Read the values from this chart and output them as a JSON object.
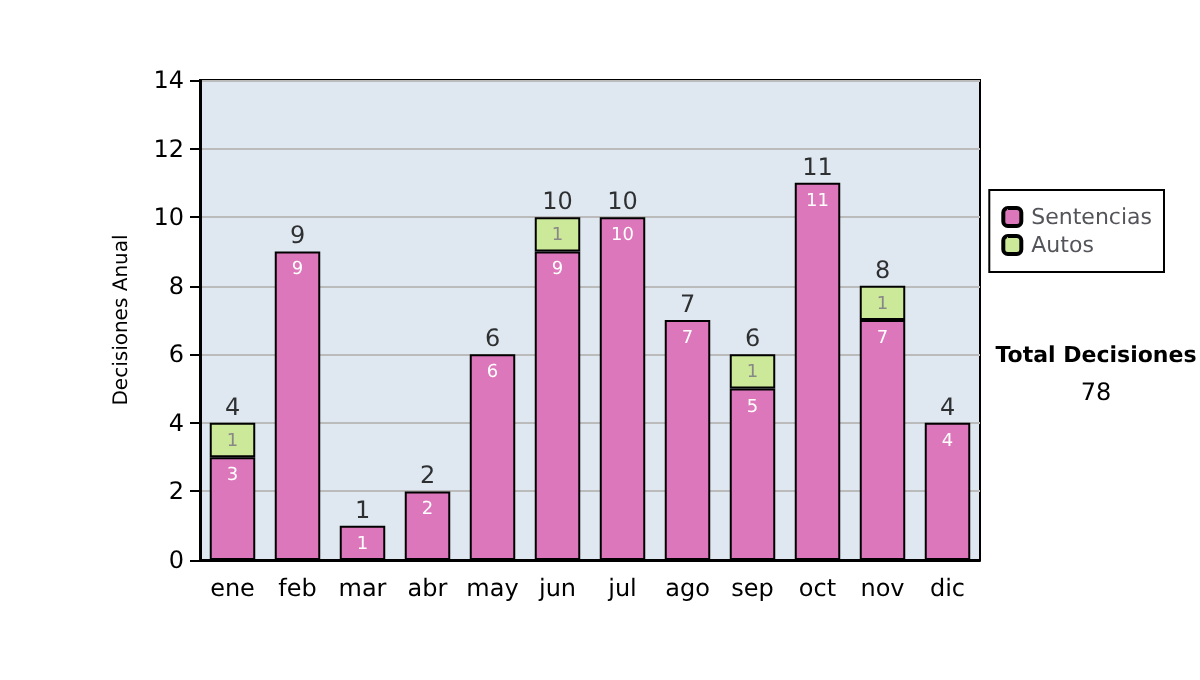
{
  "chart_data": {
    "type": "bar",
    "stacked": true,
    "ylabel": "Decisiones Anual",
    "categories": [
      "ene",
      "feb",
      "mar",
      "abr",
      "may",
      "jun",
      "jul",
      "ago",
      "sep",
      "oct",
      "nov",
      "dic"
    ],
    "series": [
      {
        "name": "Sentencias",
        "color": "#dd77bb",
        "values": [
          3,
          9,
          1,
          2,
          6,
          9,
          10,
          7,
          5,
          11,
          7,
          4
        ]
      },
      {
        "name": "Autos",
        "color": "#cce899",
        "values": [
          1,
          null,
          null,
          null,
          null,
          1,
          null,
          null,
          1,
          null,
          1,
          null
        ]
      }
    ],
    "data_labels": true,
    "totals": [
      "4",
      "9",
      "1",
      "2",
      "6",
      "10",
      "10",
      "7",
      "6",
      "11",
      "8",
      "4"
    ],
    "ylim": [
      0,
      14
    ],
    "yticks": [
      0,
      2,
      4,
      6,
      8,
      10,
      12,
      14
    ],
    "grid": "y",
    "legend": "right",
    "annotations": [
      "Total Decisiones",
      "78"
    ]
  }
}
